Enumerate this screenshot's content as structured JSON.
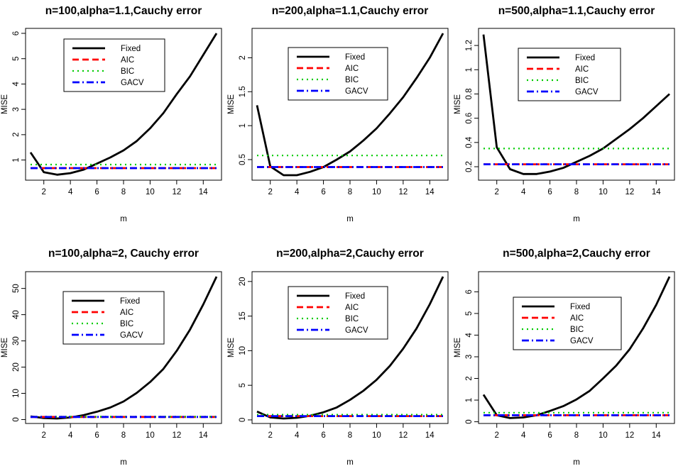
{
  "colors": {
    "Fixed": "#000000",
    "AIC": "#ff0000",
    "BIC": "#00cc00",
    "GACV": "#0000ff"
  },
  "chart_data": [
    {
      "type": "line",
      "title": "n=100,alpha=1.1,Cauchy error",
      "xlabel": "m",
      "ylabel": "MISE",
      "xlim": [
        1,
        15
      ],
      "ylim": [
        0.4,
        6.0
      ],
      "xticks": [
        2,
        4,
        6,
        8,
        10,
        12,
        14
      ],
      "yticks": [
        1,
        2,
        3,
        4,
        5,
        6
      ],
      "grid": false,
      "legend_position": "top-left",
      "x": [
        1,
        2,
        3,
        4,
        5,
        6,
        7,
        8,
        9,
        10,
        11,
        12,
        13,
        14,
        15
      ],
      "series": [
        {
          "name": "Fixed",
          "style": "solid",
          "values": [
            1.3,
            0.52,
            0.42,
            0.48,
            0.62,
            0.86,
            1.1,
            1.38,
            1.75,
            2.25,
            2.85,
            3.6,
            4.3,
            5.15,
            6.0
          ]
        },
        {
          "name": "AIC",
          "style": "dashed",
          "values": [
            0.68,
            0.68,
            0.68,
            0.68,
            0.68,
            0.68,
            0.68,
            0.68,
            0.68,
            0.68,
            0.68,
            0.68,
            0.68,
            0.68,
            0.68
          ]
        },
        {
          "name": "BIC",
          "style": "dotted",
          "values": [
            0.82,
            0.82,
            0.82,
            0.82,
            0.82,
            0.82,
            0.82,
            0.82,
            0.82,
            0.82,
            0.82,
            0.82,
            0.82,
            0.82,
            0.82
          ]
        },
        {
          "name": "GACV",
          "style": "dashdot",
          "values": [
            0.68,
            0.68,
            0.68,
            0.68,
            0.68,
            0.68,
            0.68,
            0.68,
            0.68,
            0.68,
            0.68,
            0.68,
            0.68,
            0.68,
            0.68
          ]
        }
      ]
    },
    {
      "type": "line",
      "title": "n=200,alpha=1.1,Cauchy error",
      "xlabel": "m",
      "ylabel": "MISE",
      "xlim": [
        1,
        15
      ],
      "ylim": [
        0.27,
        2.36
      ],
      "xticks": [
        2,
        4,
        6,
        8,
        10,
        12,
        14
      ],
      "yticks": [
        0.5,
        1.0,
        1.5,
        2.0
      ],
      "grid": false,
      "legend_position": "top-left",
      "x": [
        1,
        2,
        3,
        4,
        5,
        6,
        7,
        8,
        9,
        10,
        11,
        12,
        13,
        14,
        15
      ],
      "series": [
        {
          "name": "Fixed",
          "style": "solid",
          "values": [
            1.3,
            0.4,
            0.27,
            0.27,
            0.32,
            0.39,
            0.5,
            0.62,
            0.78,
            0.96,
            1.18,
            1.42,
            1.7,
            2.0,
            2.36
          ]
        },
        {
          "name": "AIC",
          "style": "dashed",
          "values": [
            0.39,
            0.39,
            0.39,
            0.39,
            0.39,
            0.39,
            0.39,
            0.39,
            0.39,
            0.39,
            0.39,
            0.39,
            0.39,
            0.39,
            0.39
          ]
        },
        {
          "name": "BIC",
          "style": "dotted",
          "values": [
            0.56,
            0.56,
            0.56,
            0.56,
            0.56,
            0.56,
            0.56,
            0.56,
            0.56,
            0.56,
            0.56,
            0.56,
            0.56,
            0.56,
            0.56
          ]
        },
        {
          "name": "GACV",
          "style": "dashdot",
          "values": [
            0.39,
            0.39,
            0.39,
            0.39,
            0.39,
            0.39,
            0.39,
            0.39,
            0.39,
            0.39,
            0.39,
            0.39,
            0.39,
            0.39,
            0.39
          ]
        }
      ]
    },
    {
      "type": "line",
      "title": "n=500,alpha=1.1,Cauchy error",
      "xlabel": "m",
      "ylabel": "MISE",
      "xlim": [
        1,
        15
      ],
      "ylim": [
        0.13,
        1.3
      ],
      "xticks": [
        2,
        4,
        6,
        8,
        10,
        12,
        14
      ],
      "yticks": [
        0.2,
        0.4,
        0.6,
        0.8,
        1.0,
        1.2
      ],
      "grid": false,
      "legend_position": "top-left",
      "x": [
        1,
        2,
        3,
        4,
        5,
        6,
        7,
        8,
        9,
        10,
        11,
        12,
        13,
        14,
        15
      ],
      "series": [
        {
          "name": "Fixed",
          "style": "solid",
          "values": [
            1.29,
            0.36,
            0.18,
            0.14,
            0.14,
            0.16,
            0.19,
            0.24,
            0.29,
            0.35,
            0.43,
            0.51,
            0.6,
            0.7,
            0.8
          ]
        },
        {
          "name": "AIC",
          "style": "dashed",
          "values": [
            0.22,
            0.22,
            0.22,
            0.22,
            0.22,
            0.22,
            0.22,
            0.22,
            0.22,
            0.22,
            0.22,
            0.22,
            0.22,
            0.22,
            0.22
          ]
        },
        {
          "name": "BIC",
          "style": "dotted",
          "values": [
            0.35,
            0.35,
            0.35,
            0.35,
            0.35,
            0.35,
            0.35,
            0.35,
            0.35,
            0.35,
            0.35,
            0.35,
            0.35,
            0.35,
            0.35
          ]
        },
        {
          "name": "GACV",
          "style": "dashdot",
          "values": [
            0.22,
            0.22,
            0.22,
            0.22,
            0.22,
            0.22,
            0.22,
            0.22,
            0.22,
            0.22,
            0.22,
            0.22,
            0.22,
            0.22,
            0.22
          ]
        }
      ]
    },
    {
      "type": "line",
      "title": "n=100,alpha=2, Cauchy error",
      "xlabel": "m",
      "ylabel": "MISE",
      "xlim": [
        1,
        15
      ],
      "ylim": [
        0.4,
        54.5
      ],
      "xticks": [
        2,
        4,
        6,
        8,
        10,
        12,
        14
      ],
      "yticks": [
        0,
        10,
        20,
        30,
        40,
        50
      ],
      "grid": false,
      "legend_position": "top-left",
      "x": [
        1,
        2,
        3,
        4,
        5,
        6,
        7,
        8,
        9,
        10,
        11,
        12,
        13,
        14,
        15
      ],
      "series": [
        {
          "name": "Fixed",
          "style": "solid",
          "values": [
            1.2,
            0.6,
            0.4,
            0.8,
            1.7,
            3.0,
            4.6,
            6.9,
            10.2,
            14.3,
            19.3,
            26.2,
            34.3,
            43.9,
            54.5
          ]
        },
        {
          "name": "AIC",
          "style": "dashed",
          "values": [
            1.0,
            1.0,
            1.0,
            1.0,
            1.0,
            1.0,
            1.0,
            1.0,
            1.0,
            1.0,
            1.0,
            1.0,
            1.0,
            1.0,
            1.0
          ]
        },
        {
          "name": "BIC",
          "style": "dotted",
          "values": [
            1.1,
            1.1,
            1.1,
            1.1,
            1.1,
            1.1,
            1.1,
            1.1,
            1.1,
            1.1,
            1.1,
            1.1,
            1.1,
            1.1,
            1.1
          ]
        },
        {
          "name": "GACV",
          "style": "dashdot",
          "values": [
            1.0,
            1.0,
            1.0,
            1.0,
            1.0,
            1.0,
            1.0,
            1.0,
            1.0,
            1.0,
            1.0,
            1.0,
            1.0,
            1.0,
            1.0
          ]
        }
      ]
    },
    {
      "type": "line",
      "title": "n=200,alpha=2,Cauchy error",
      "xlabel": "m",
      "ylabel": "MISE",
      "xlim": [
        1,
        15
      ],
      "ylim": [
        0.2,
        20.7
      ],
      "xticks": [
        2,
        4,
        6,
        8,
        10,
        12,
        14
      ],
      "yticks": [
        0,
        5,
        10,
        15,
        20
      ],
      "grid": false,
      "legend_position": "top-left",
      "x": [
        1,
        2,
        3,
        4,
        5,
        6,
        7,
        8,
        9,
        10,
        11,
        12,
        13,
        14,
        15
      ],
      "series": [
        {
          "name": "Fixed",
          "style": "solid",
          "values": [
            1.2,
            0.35,
            0.2,
            0.3,
            0.6,
            1.1,
            1.8,
            2.9,
            4.2,
            5.8,
            7.8,
            10.3,
            13.2,
            16.7,
            20.7
          ]
        },
        {
          "name": "AIC",
          "style": "dashed",
          "values": [
            0.55,
            0.55,
            0.55,
            0.55,
            0.55,
            0.55,
            0.55,
            0.55,
            0.55,
            0.55,
            0.55,
            0.55,
            0.55,
            0.55,
            0.55
          ]
        },
        {
          "name": "BIC",
          "style": "dotted",
          "values": [
            0.75,
            0.75,
            0.75,
            0.75,
            0.75,
            0.75,
            0.75,
            0.75,
            0.75,
            0.75,
            0.75,
            0.75,
            0.75,
            0.75,
            0.75
          ]
        },
        {
          "name": "GACV",
          "style": "dashdot",
          "values": [
            0.55,
            0.55,
            0.55,
            0.55,
            0.55,
            0.55,
            0.55,
            0.55,
            0.55,
            0.55,
            0.55,
            0.55,
            0.55,
            0.55,
            0.55
          ]
        }
      ]
    },
    {
      "type": "line",
      "title": "n=500,alpha=2,Cauchy error",
      "xlabel": "m",
      "ylabel": "MISE",
      "xlim": [
        1,
        15
      ],
      "ylim": [
        0.15,
        6.7
      ],
      "xticks": [
        2,
        4,
        6,
        8,
        10,
        12,
        14
      ],
      "yticks": [
        0,
        1,
        2,
        3,
        4,
        5,
        6
      ],
      "grid": false,
      "legend_position": "top-left",
      "x": [
        1,
        2,
        3,
        4,
        5,
        6,
        7,
        8,
        9,
        10,
        11,
        12,
        13,
        14,
        15
      ],
      "series": [
        {
          "name": "Fixed",
          "style": "solid",
          "values": [
            1.25,
            0.3,
            0.17,
            0.2,
            0.3,
            0.5,
            0.72,
            1.03,
            1.43,
            2.0,
            2.6,
            3.35,
            4.3,
            5.4,
            6.7
          ]
        },
        {
          "name": "AIC",
          "style": "dashed",
          "values": [
            0.3,
            0.3,
            0.3,
            0.3,
            0.3,
            0.3,
            0.3,
            0.3,
            0.3,
            0.3,
            0.3,
            0.3,
            0.3,
            0.3,
            0.3
          ]
        },
        {
          "name": "BIC",
          "style": "dotted",
          "values": [
            0.42,
            0.42,
            0.42,
            0.42,
            0.42,
            0.42,
            0.42,
            0.42,
            0.42,
            0.42,
            0.42,
            0.42,
            0.42,
            0.42,
            0.42
          ]
        },
        {
          "name": "GACV",
          "style": "dashdot",
          "values": [
            0.3,
            0.3,
            0.3,
            0.3,
            0.3,
            0.3,
            0.3,
            0.3,
            0.3,
            0.3,
            0.3,
            0.3,
            0.3,
            0.3,
            0.3
          ]
        }
      ]
    }
  ]
}
